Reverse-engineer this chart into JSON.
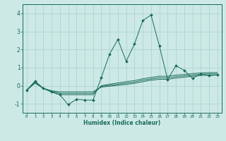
{
  "title": "",
  "xlabel": "Humidex (Indice chaleur)",
  "ylabel": "",
  "background_color": "#cce9e6",
  "grid_color": "#aad0cc",
  "line_color": "#1a6b5a",
  "xlim": [
    -0.5,
    23.5
  ],
  "ylim": [
    -1.5,
    4.5
  ],
  "xticks": [
    0,
    1,
    2,
    3,
    4,
    5,
    6,
    7,
    8,
    9,
    10,
    11,
    12,
    13,
    14,
    15,
    16,
    17,
    18,
    19,
    20,
    21,
    22,
    23
  ],
  "yticks": [
    -1,
    0,
    1,
    2,
    3,
    4
  ],
  "line1_x": [
    0,
    1,
    2,
    3,
    4,
    5,
    6,
    7,
    8,
    9,
    10,
    11,
    12,
    13,
    14,
    15,
    16,
    17,
    18,
    19,
    20,
    21,
    22,
    23
  ],
  "line1_y": [
    -0.25,
    0.25,
    -0.15,
    -0.35,
    -0.5,
    -1.05,
    -0.75,
    -0.8,
    -0.8,
    0.45,
    1.75,
    2.55,
    1.35,
    2.3,
    3.6,
    3.9,
    2.2,
    0.35,
    1.1,
    0.85,
    0.4,
    0.65,
    0.55,
    0.6
  ],
  "line2_x": [
    0,
    1,
    2,
    3,
    4,
    5,
    6,
    7,
    8,
    9,
    10,
    11,
    12,
    13,
    14,
    15,
    16,
    17,
    18,
    19,
    20,
    21,
    22,
    23
  ],
  "line2_y": [
    -0.25,
    0.22,
    -0.15,
    -0.35,
    -0.5,
    -0.5,
    -0.5,
    -0.5,
    -0.5,
    0.0,
    0.08,
    0.15,
    0.22,
    0.28,
    0.38,
    0.45,
    0.52,
    0.52,
    0.58,
    0.62,
    0.67,
    0.7,
    0.72,
    0.72
  ],
  "line3_x": [
    0,
    1,
    2,
    3,
    4,
    5,
    6,
    7,
    8,
    9,
    10,
    11,
    12,
    13,
    14,
    15,
    16,
    17,
    18,
    19,
    20,
    21,
    22,
    23
  ],
  "line3_y": [
    -0.25,
    0.18,
    -0.15,
    -0.32,
    -0.42,
    -0.42,
    -0.42,
    -0.42,
    -0.42,
    -0.04,
    0.02,
    0.08,
    0.14,
    0.2,
    0.3,
    0.37,
    0.43,
    0.43,
    0.5,
    0.54,
    0.59,
    0.63,
    0.65,
    0.65
  ],
  "line4_x": [
    0,
    1,
    2,
    3,
    4,
    5,
    6,
    7,
    8,
    9,
    10,
    11,
    12,
    13,
    14,
    15,
    16,
    17,
    18,
    19,
    20,
    21,
    22,
    23
  ],
  "line4_y": [
    -0.25,
    0.14,
    -0.15,
    -0.28,
    -0.34,
    -0.34,
    -0.34,
    -0.34,
    -0.34,
    -0.08,
    -0.03,
    0.02,
    0.07,
    0.13,
    0.22,
    0.3,
    0.35,
    0.35,
    0.42,
    0.47,
    0.52,
    0.56,
    0.58,
    0.58
  ]
}
